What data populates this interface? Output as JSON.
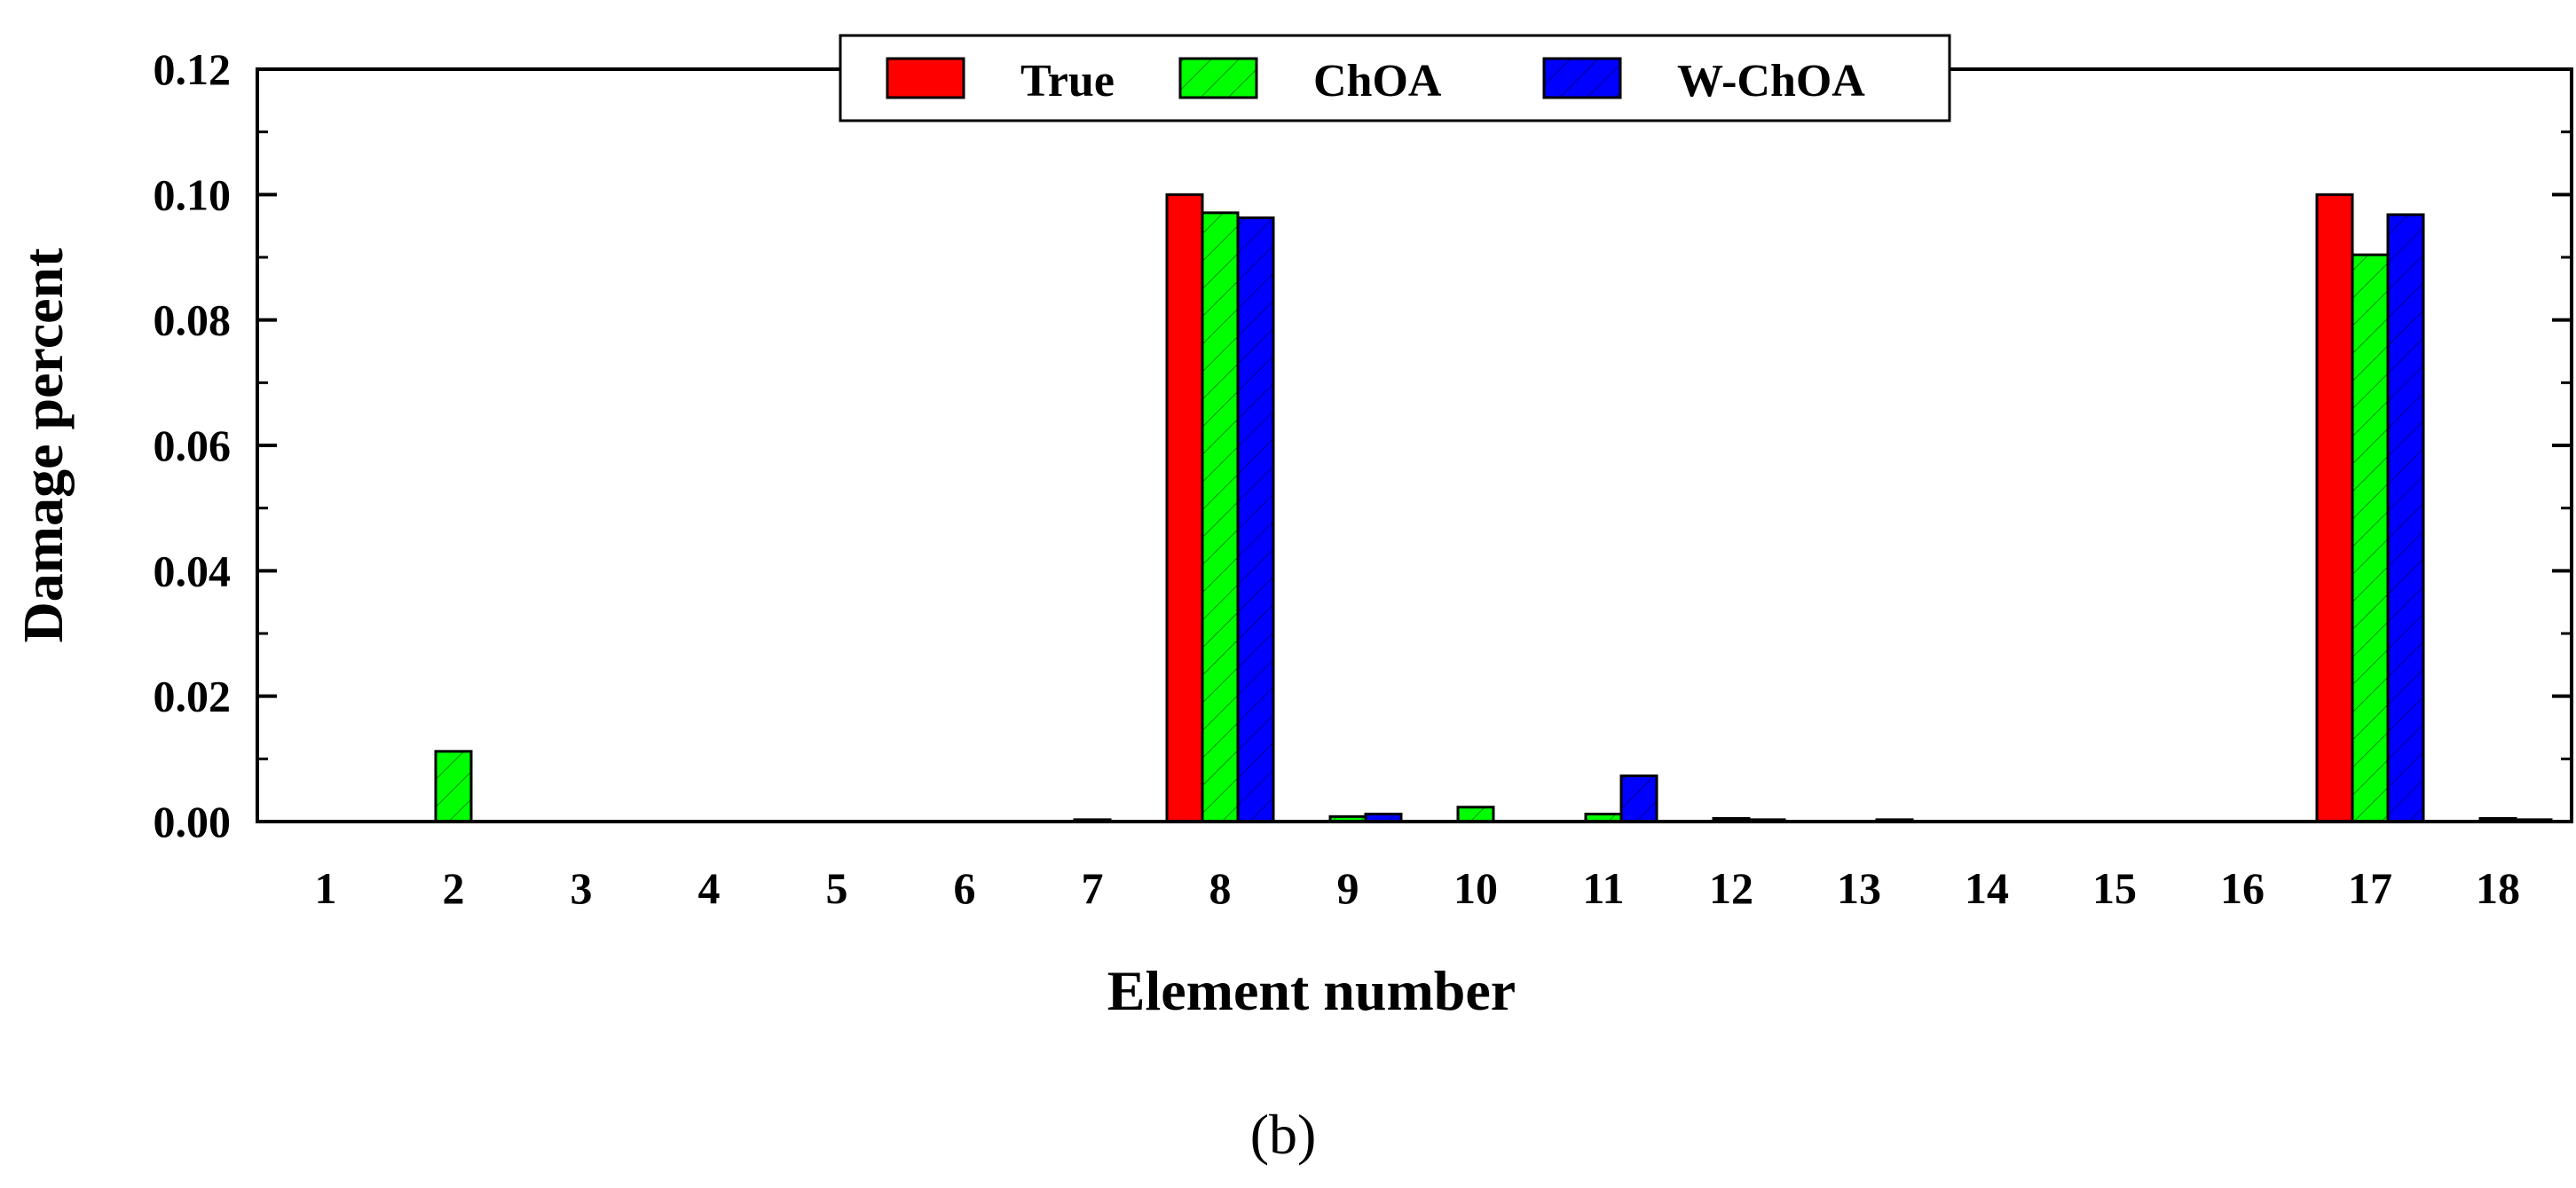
{
  "chart_data": {
    "type": "bar",
    "title": "",
    "xlabel": "Element number",
    "ylabel": "Damage percent",
    "ylim": [
      0,
      0.12
    ],
    "yticks": [
      "0.00",
      "0.02",
      "0.04",
      "0.06",
      "0.08",
      "0.10",
      "0.12"
    ],
    "categories": [
      "1",
      "2",
      "3",
      "4",
      "5",
      "6",
      "7",
      "8",
      "9",
      "10",
      "11",
      "12",
      "13",
      "14",
      "15",
      "16",
      "17",
      "18"
    ],
    "series": [
      {
        "name": "True",
        "color": "#ff0000",
        "hatch": false,
        "values": [
          0,
          0,
          0,
          0,
          0,
          0,
          0,
          0.1,
          0,
          0,
          0,
          0,
          0,
          0,
          0,
          0,
          0.1,
          0
        ]
      },
      {
        "name": "ChOA",
        "color": "#00ff00",
        "hatch": true,
        "values": [
          0,
          0.0112,
          0,
          0,
          0,
          0,
          0.0003,
          0.0971,
          0.0008,
          0.0023,
          0.0012,
          0.0005,
          0,
          0,
          0,
          0,
          0.0904,
          0.0005
        ]
      },
      {
        "name": "W-ChOA",
        "color": "#0000ff",
        "hatch": true,
        "values": [
          0,
          0,
          0,
          0,
          0,
          0,
          0,
          0.0963,
          0.0012,
          0,
          0.0073,
          0.0003,
          0.0003,
          0,
          0,
          0,
          0.0968,
          0.0003
        ]
      }
    ],
    "legend_position": "top-center",
    "grid": false
  },
  "panel_label": "(b)"
}
